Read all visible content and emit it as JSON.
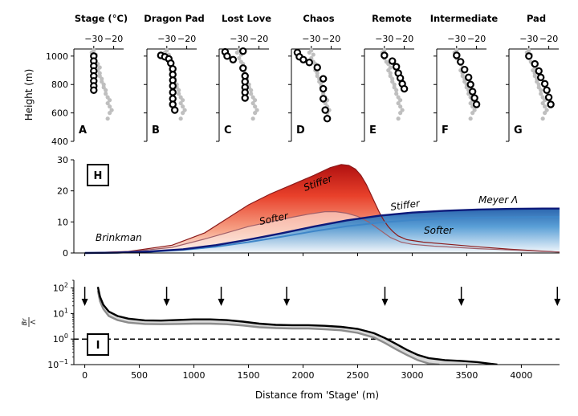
{
  "chart_data": [
    {
      "type": "scatter",
      "ylabel": "Height (m)",
      "ylim": [
        400,
        1050
      ],
      "xlim": [
        -40,
        -15
      ],
      "yticks": [
        "400",
        "600",
        "800",
        "1000"
      ],
      "xticks": [
        "−30",
        "−20"
      ],
      "background_points": [
        {
          "x": -30,
          "y": 1040
        },
        {
          "x": -31,
          "y": 1025
        },
        {
          "x": -29,
          "y": 1010
        },
        {
          "x": -30,
          "y": 985
        },
        {
          "x": -29,
          "y": 960
        },
        {
          "x": -28,
          "y": 945
        },
        {
          "x": -27,
          "y": 920
        },
        {
          "x": -28,
          "y": 900
        },
        {
          "x": -27,
          "y": 880
        },
        {
          "x": -27,
          "y": 860
        },
        {
          "x": -26,
          "y": 840
        },
        {
          "x": -26,
          "y": 820
        },
        {
          "x": -25,
          "y": 800
        },
        {
          "x": -25,
          "y": 780
        },
        {
          "x": -24,
          "y": 760
        },
        {
          "x": -24,
          "y": 735
        },
        {
          "x": -23,
          "y": 710
        },
        {
          "x": -22,
          "y": 690
        },
        {
          "x": -23,
          "y": 668
        },
        {
          "x": -22,
          "y": 645
        },
        {
          "x": -21,
          "y": 620
        },
        {
          "x": -22,
          "y": 600
        },
        {
          "x": -23,
          "y": 560
        }
      ],
      "panels": [
        {
          "title": "Stage (°C)",
          "letter": "A",
          "points": [
            {
              "x": -30,
              "y": 1000
            },
            {
              "x": -30,
              "y": 965
            },
            {
              "x": -30,
              "y": 930
            },
            {
              "x": -30,
              "y": 895
            },
            {
              "x": -30,
              "y": 860
            },
            {
              "x": -30,
              "y": 825
            },
            {
              "x": -30,
              "y": 790
            },
            {
              "x": -30,
              "y": 760
            }
          ]
        },
        {
          "title": "Dragon Pad",
          "letter": "B",
          "points": [
            {
              "x": -33,
              "y": 1005
            },
            {
              "x": -31,
              "y": 995
            },
            {
              "x": -29,
              "y": 980
            },
            {
              "x": -28,
              "y": 950
            },
            {
              "x": -27,
              "y": 910
            },
            {
              "x": -27,
              "y": 870
            },
            {
              "x": -27,
              "y": 830
            },
            {
              "x": -27,
              "y": 790
            },
            {
              "x": -27,
              "y": 745
            },
            {
              "x": -27,
              "y": 700
            },
            {
              "x": -27,
              "y": 660
            },
            {
              "x": -26,
              "y": 620
            }
          ]
        },
        {
          "title": "Lost Love",
          "letter": "C",
          "points": [
            {
              "x": -37,
              "y": 1030
            },
            {
              "x": -36,
              "y": 1000
            },
            {
              "x": -33,
              "y": 975
            },
            {
              "x": -28,
              "y": 1035
            },
            {
              "x": -28,
              "y": 915
            },
            {
              "x": -27,
              "y": 860
            },
            {
              "x": -27,
              "y": 820
            },
            {
              "x": -27,
              "y": 780
            },
            {
              "x": -27,
              "y": 745
            },
            {
              "x": -27,
              "y": 705
            }
          ]
        },
        {
          "title": "Chaos",
          "letter": "D",
          "points": [
            {
              "x": -37,
              "y": 1025
            },
            {
              "x": -36,
              "y": 995
            },
            {
              "x": -34,
              "y": 975
            },
            {
              "x": -31,
              "y": 955
            },
            {
              "x": -27,
              "y": 920
            },
            {
              "x": -24,
              "y": 840
            },
            {
              "x": -24,
              "y": 770
            },
            {
              "x": -24,
              "y": 700
            },
            {
              "x": -23,
              "y": 620
            },
            {
              "x": -22,
              "y": 560
            }
          ]
        },
        {
          "title": "Remote",
          "letter": "E",
          "points": [
            {
              "x": -30,
              "y": 1005
            },
            {
              "x": -26,
              "y": 965
            },
            {
              "x": -24,
              "y": 925
            },
            {
              "x": -23,
              "y": 880
            },
            {
              "x": -22,
              "y": 845
            },
            {
              "x": -21,
              "y": 805
            },
            {
              "x": -20,
              "y": 770
            }
          ]
        },
        {
          "title": "Intermediate",
          "letter": "F",
          "points": [
            {
              "x": -30,
              "y": 1005
            },
            {
              "x": -28,
              "y": 960
            },
            {
              "x": -26,
              "y": 905
            },
            {
              "x": -24,
              "y": 850
            },
            {
              "x": -23,
              "y": 800
            },
            {
              "x": -22,
              "y": 750
            },
            {
              "x": -21,
              "y": 705
            },
            {
              "x": -20,
              "y": 660
            }
          ]
        },
        {
          "title": "Pad",
          "letter": "G",
          "points": [
            {
              "x": -30,
              "y": 1000
            },
            {
              "x": -27,
              "y": 945
            },
            {
              "x": -25,
              "y": 895
            },
            {
              "x": -24,
              "y": 850
            },
            {
              "x": -22,
              "y": 805
            },
            {
              "x": -21,
              "y": 760
            },
            {
              "x": -20,
              "y": 710
            },
            {
              "x": -19,
              "y": 660
            }
          ]
        }
      ]
    },
    {
      "type": "area",
      "letter": "H",
      "xlim": [
        -100,
        4350
      ],
      "ylim": [
        0,
        30
      ],
      "yticks": [
        "0",
        "10",
        "20",
        "30"
      ],
      "annotations": {
        "brinkman": "Brinkman",
        "softer_red": "Softer",
        "stiffer_red": "Stiffer",
        "stiffer_blue": "Stiffer",
        "meyer": "Meyer Λ",
        "softer_blue": "Softer"
      },
      "colors": {
        "red_dark": "#8b1a1a",
        "red_mid": "#e03020",
        "red_light": "#fbe3da",
        "blue_dark": "#0d1a7a",
        "blue_mid": "#3f86c8",
        "blue_light": "#eef5fb",
        "brinkman_text": "#c0504d",
        "softer_blue_text": "#4a86c0"
      },
      "series": [
        {
          "name": "Brinkman Stiffer",
          "x": [
            0,
            400,
            800,
            1100,
            1300,
            1500,
            1700,
            1900,
            2100,
            2250,
            2350,
            2420,
            2480,
            2530,
            2580,
            2620,
            2660,
            2700,
            2740,
            2780,
            2820,
            2870,
            2950,
            3100,
            3300,
            3600,
            3900,
            4200,
            4350
          ],
          "y": [
            0,
            0.5,
            2.5,
            6.5,
            11,
            15.5,
            19,
            22,
            25,
            27.5,
            28.5,
            28.2,
            27,
            25,
            22,
            19,
            16,
            13,
            10.5,
            8.5,
            7,
            5.5,
            4.3,
            3.5,
            2.9,
            2,
            1.2,
            0.6,
            0.3
          ]
        },
        {
          "name": "Brinkman Softer",
          "x": [
            0,
            400,
            800,
            1100,
            1300,
            1500,
            1700,
            1900,
            2050,
            2200,
            2300,
            2400,
            2500,
            2600,
            2700,
            2800,
            2900,
            3000,
            3200,
            3400,
            3600,
            3800,
            4000,
            4200,
            4350
          ],
          "y": [
            0,
            0.4,
            1.8,
            4.5,
            6.5,
            8.5,
            10,
            11.5,
            12.5,
            13.3,
            13.3,
            12.8,
            11.8,
            10,
            7.5,
            5,
            3.5,
            2.8,
            2.2,
            1.8,
            1.4,
            1.1,
            0.8,
            0.5,
            0.3
          ]
        },
        {
          "name": "Meyer Stiffer",
          "x": [
            0,
            300,
            600,
            900,
            1200,
            1500,
            1800,
            2100,
            2400,
            2700,
            3000,
            3300,
            3600,
            3900,
            4200,
            4350
          ],
          "y": [
            0,
            0.1,
            0.5,
            1.2,
            2.5,
            4.3,
            6.3,
            8.5,
            10.5,
            12,
            13,
            13.6,
            14,
            14.2,
            14.3,
            14.3
          ]
        },
        {
          "name": "Meyer Softer",
          "x": [
            0,
            300,
            600,
            900,
            1200,
            1500,
            1800,
            2100,
            2400,
            2700,
            3000,
            3300,
            3600,
            3900,
            4200,
            4350
          ],
          "y": [
            0,
            0.1,
            0.4,
            1,
            2,
            3.5,
            5.2,
            7,
            8.6,
            9.8,
            10.6,
            11.1,
            11.4,
            11.5,
            11.6,
            11.6
          ]
        }
      ]
    },
    {
      "type": "line",
      "letter": "I",
      "xlabel": "Distance from 'Stage' (m)",
      "ylabel": "Br / Λ",
      "ylabel_num": "Br",
      "ylabel_den": "Λ",
      "xlim": [
        -100,
        4350
      ],
      "ylim": [
        0.1,
        200
      ],
      "log_y": true,
      "xticks": [
        "0",
        "500",
        "1000",
        "1500",
        "2000",
        "2500",
        "3000",
        "3500",
        "4000"
      ],
      "yticks": [
        {
          "base": "10",
          "exp": "2"
        },
        {
          "base": "10",
          "exp": "1"
        },
        {
          "base": "10",
          "exp": "0"
        },
        {
          "base": "10",
          "exp": "−1"
        }
      ],
      "reference_line": 1,
      "arrows_x": [
        0,
        750,
        1250,
        1850,
        2750,
        3450,
        4330
      ],
      "series": [
        {
          "name": "Br/Λ upper",
          "x": [
            120,
            140,
            170,
            220,
            300,
            400,
            550,
            700,
            850,
            1000,
            1150,
            1300,
            1450,
            1600,
            1750,
            1900,
            2050,
            2200,
            2350,
            2500,
            2650,
            2750,
            2850,
            2950,
            3050,
            3150,
            3300,
            3450,
            3600,
            3700,
            3780
          ],
          "y": [
            110,
            45,
            22,
            12,
            8,
            6.3,
            5.4,
            5.3,
            5.6,
            5.9,
            5.9,
            5.5,
            4.8,
            4.0,
            3.6,
            3.5,
            3.5,
            3.3,
            3.0,
            2.5,
            1.7,
            1.1,
            0.65,
            0.38,
            0.24,
            0.18,
            0.15,
            0.14,
            0.125,
            0.11,
            0.1
          ]
        },
        {
          "name": "Br/Λ lower",
          "x": [
            120,
            140,
            170,
            220,
            300,
            400,
            550,
            700,
            850,
            1000,
            1150,
            1300,
            1450,
            1600,
            1750,
            1900,
            2050,
            2200,
            2350,
            2500,
            2650,
            2750,
            2850,
            2950,
            3050,
            3150,
            3250
          ],
          "y": [
            80,
            30,
            15,
            8,
            5.5,
            4.4,
            3.9,
            3.8,
            3.9,
            4.0,
            4.0,
            3.8,
            3.4,
            2.9,
            2.7,
            2.6,
            2.6,
            2.4,
            2.2,
            1.75,
            1.15,
            0.7,
            0.4,
            0.24,
            0.15,
            0.11,
            0.1
          ]
        }
      ]
    }
  ]
}
